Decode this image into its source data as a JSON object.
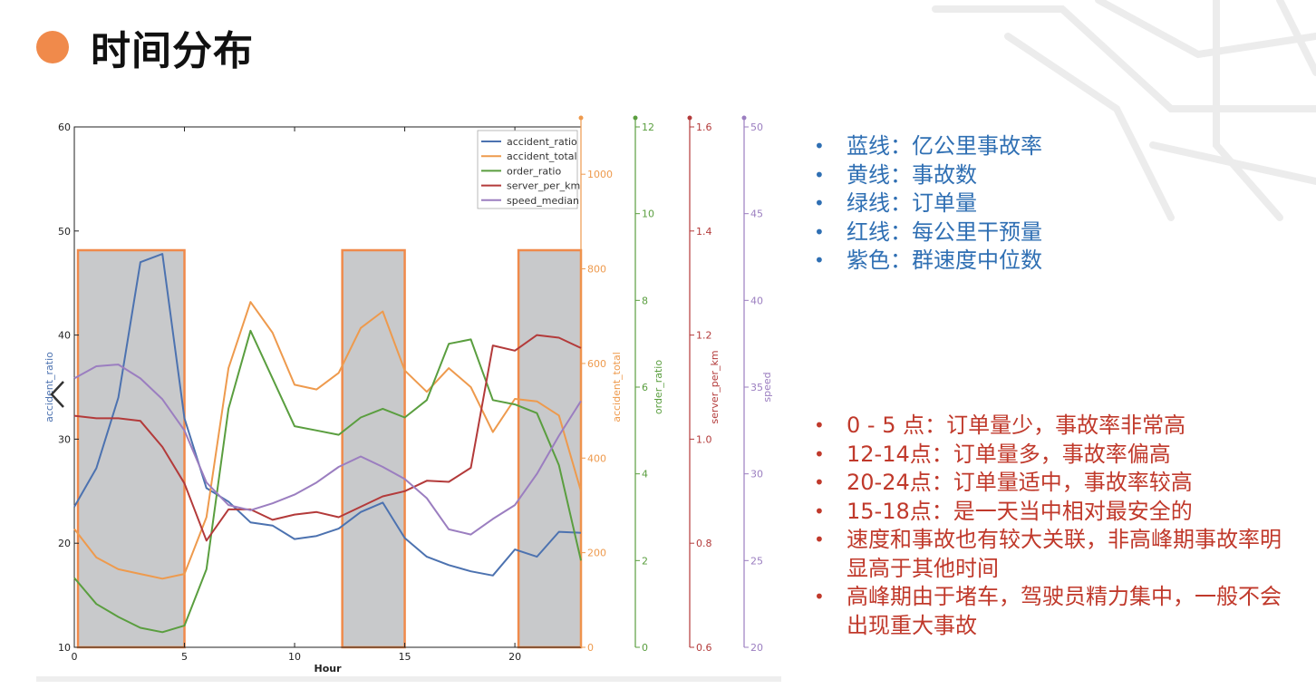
{
  "page": {
    "title": "时间分布",
    "accent": "#f08a4b"
  },
  "legend_notes": [
    "蓝线：亿公里事故率",
    "黄线：事故数",
    "绿线：订单量",
    "红线：每公里干预量",
    "紫色：群速度中位数"
  ],
  "observations": [
    "0 - 5 点：订单量少，事故率非常高",
    "12-14点：订单量多，事故率偏高",
    "20-24点：订单量适中，事故率较高",
    "15-18点：是一天当中相对最安全的",
    "速度和事故也有较大关联，非高峰期事故率明显高于其他时间",
    "高峰期由于堵车，驾驶员精力集中，一般不会出现重大事故"
  ],
  "colors": {
    "accident_ratio": "#4c72b0",
    "accident_total": "#ee9a4d",
    "order_ratio": "#5a9e3f",
    "server_per_km": "#b33a3a",
    "speed_median": "#9b7ec0",
    "highlight_fill": "#c8c9cb",
    "highlight_stroke": "#f08a4b",
    "notes_blue": "#2f6fb3",
    "notes_red": "#c0392b"
  },
  "chart_data": {
    "type": "line",
    "xlabel": "Hour",
    "xlim": [
      0,
      23
    ],
    "x_ticks": [
      0,
      5,
      10,
      15,
      20
    ],
    "x": [
      0,
      1,
      2,
      3,
      4,
      5,
      6,
      7,
      8,
      9,
      10,
      11,
      12,
      13,
      14,
      15,
      16,
      17,
      18,
      19,
      20,
      21,
      22,
      23
    ],
    "highlight_ranges": [
      [
        0,
        5
      ],
      [
        12,
        15
      ],
      [
        20,
        23
      ]
    ],
    "axes": [
      {
        "key": "accident_ratio",
        "label": "accident_ratio",
        "ylim": [
          10,
          60
        ],
        "ticks": [
          10,
          20,
          30,
          40,
          50,
          60
        ]
      },
      {
        "key": "accident_total",
        "label": "accident_total",
        "ylim": [
          0,
          1100
        ],
        "ticks": [
          0,
          200,
          400,
          600,
          800,
          1000
        ]
      },
      {
        "key": "order_ratio",
        "label": "order_ratio",
        "ylim": [
          0,
          12
        ],
        "ticks": [
          0,
          2,
          4,
          6,
          8,
          10,
          12
        ]
      },
      {
        "key": "server_per_km",
        "label": "server_per_km",
        "ylim": [
          0.6,
          1.6
        ],
        "ticks": [
          0.6,
          0.8,
          1.0,
          1.2,
          1.4,
          1.6
        ]
      },
      {
        "key": "speed_median",
        "label": "speed",
        "ylim": [
          20,
          50
        ],
        "ticks": [
          20,
          25,
          30,
          35,
          40,
          45,
          50
        ]
      }
    ],
    "series": [
      {
        "name": "accident_ratio",
        "axis": "accident_ratio",
        "values": [
          23.5,
          27.2,
          34,
          47,
          47.8,
          32,
          25.3,
          24,
          22,
          21.7,
          20.4,
          20.7,
          21.4,
          23,
          23.9,
          20.5,
          18.7,
          17.9,
          17.3,
          16.9,
          19.4,
          18.7,
          21.1,
          21
        ]
      },
      {
        "name": "accident_total",
        "axis": "accident_total",
        "values": [
          250,
          190,
          165,
          155,
          145,
          155,
          275,
          590,
          730,
          665,
          555,
          545,
          580,
          675,
          710,
          585,
          540,
          590,
          550,
          455,
          525,
          520,
          490,
          330
        ]
      },
      {
        "name": "order_ratio",
        "axis": "order_ratio",
        "values": [
          1.6,
          1.0,
          0.7,
          0.45,
          0.35,
          0.5,
          1.8,
          5.5,
          7.3,
          6.2,
          5.1,
          5.0,
          4.9,
          5.3,
          5.5,
          5.3,
          5.7,
          7.0,
          7.1,
          5.7,
          5.6,
          5.4,
          4.2,
          2.0
        ]
      },
      {
        "name": "server_per_km",
        "axis": "server_per_km",
        "values": [
          1.045,
          1.04,
          1.04,
          1.035,
          0.985,
          0.915,
          0.805,
          0.865,
          0.865,
          0.845,
          0.855,
          0.86,
          0.85,
          0.87,
          0.89,
          0.9,
          0.92,
          0.918,
          0.945,
          1.18,
          1.17,
          1.2,
          1.195,
          1.175
        ]
      },
      {
        "name": "speed_median",
        "axis": "speed_median",
        "values": [
          35.5,
          36.2,
          36.3,
          35.5,
          34.3,
          32.5,
          29.5,
          28.2,
          27.9,
          28.3,
          28.8,
          29.5,
          30.4,
          31.0,
          30.4,
          29.7,
          28.6,
          26.8,
          26.5,
          27.4,
          28.2,
          30.0,
          32.2,
          34.2
        ]
      }
    ],
    "legend": {
      "placement": "top-right",
      "entries": [
        "accident_ratio",
        "accident_total",
        "order_ratio",
        "server_per_km",
        "speed_median"
      ]
    },
    "grid": false
  }
}
